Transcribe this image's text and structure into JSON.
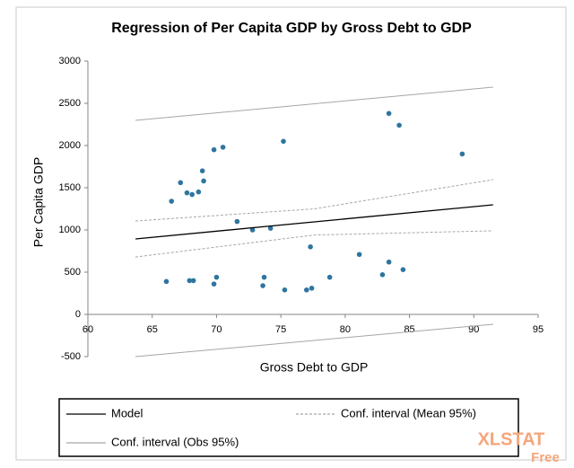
{
  "chart_data": {
    "type": "scatter",
    "title": "Regression of Per Capita GDP by Gross Debt to GDP",
    "x_label": "Gross Debt to GDP",
    "y_label": "Per Capita GDP",
    "xlim": [
      60,
      95
    ],
    "xticks": [
      60,
      65,
      70,
      75,
      80,
      85,
      90,
      95
    ],
    "ylim": [
      -500,
      3000
    ],
    "yticks": [
      -500,
      0,
      500,
      1000,
      1500,
      2000,
      2500,
      3000
    ],
    "grid": false,
    "series": [
      {
        "style": "points",
        "color": "#2e75a0",
        "x": [
          66.1,
          66.5,
          67.2,
          67.7,
          68.1,
          68.6,
          68.9,
          69.0,
          69.8,
          70.5,
          67.9,
          68.2,
          69.8,
          70.0,
          71.6,
          72.8,
          73.7,
          73.6,
          74.2,
          75.2,
          75.3,
          77.0,
          77.4,
          77.3,
          78.8,
          81.1,
          82.9,
          83.4,
          83.4,
          84.2,
          84.5,
          89.1
        ],
        "values": [
          390,
          1340,
          1560,
          1440,
          1420,
          1450,
          1700,
          1580,
          1950,
          1980,
          400,
          400,
          360,
          440,
          1100,
          1000,
          440,
          340,
          1020,
          2050,
          290,
          290,
          310,
          800,
          440,
          710,
          470,
          620,
          2380,
          2240,
          530,
          1900
        ]
      },
      {
        "name": "Model",
        "style": "line",
        "color": "#000000",
        "dash": false,
        "x": [
          63.7,
          91.5
        ],
        "values": [
          894,
          1298
        ]
      },
      {
        "name": "Conf. interval (Mean 95%)",
        "style": "line",
        "color": "#a6a6a6",
        "dash": true,
        "x": [
          63.7,
          77.6,
          91.5
        ],
        "values": [
          1106,
          1250,
          1596
        ]
      },
      {
        "style": "line",
        "color": "#a6a6a6",
        "dash": true,
        "x": [
          63.7,
          77.6,
          91.5
        ],
        "values": [
          680,
          940,
          990
        ]
      },
      {
        "name": "Conf. interval (Obs 95%)",
        "style": "line",
        "color": "#a6a6a6",
        "dash": false,
        "x": [
          63.7,
          91.5
        ],
        "values": [
          2298,
          2691
        ]
      },
      {
        "style": "line",
        "color": "#a6a6a6",
        "dash": false,
        "x": [
          63.7,
          91.5
        ],
        "values": [
          -500,
          -117
        ]
      }
    ]
  },
  "watermark": {
    "brand": "XLSTAT",
    "edition": "Free"
  }
}
